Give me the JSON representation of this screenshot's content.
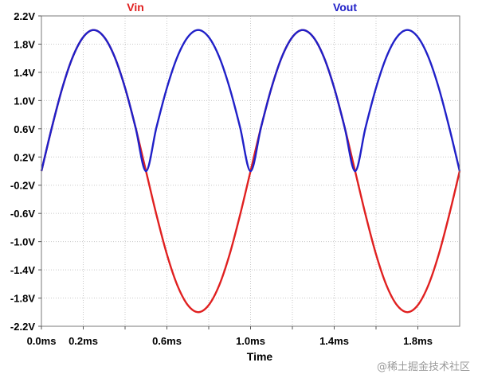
{
  "chart_data": {
    "type": "line",
    "xlabel": "Time",
    "ylabel": "",
    "xlim": [
      0,
      2
    ],
    "ylim": [
      -2.2,
      2.2
    ],
    "grid": true,
    "x_ticks": [
      {
        "value": 0.0,
        "label": "0.0ms"
      },
      {
        "value": 0.2,
        "label": "0.2ms"
      },
      {
        "value": 0.6,
        "label": "0.6ms"
      },
      {
        "value": 1.0,
        "label": "1.0ms"
      },
      {
        "value": 1.4,
        "label": "1.4ms"
      },
      {
        "value": 1.8,
        "label": "1.8ms"
      }
    ],
    "x_grid": [
      0.4,
      0.8,
      1.2,
      1.6
    ],
    "y_ticks": [
      {
        "value": 2.2,
        "label": "2.2V"
      },
      {
        "value": 1.8,
        "label": "1.8V"
      },
      {
        "value": 1.4,
        "label": "1.4V"
      },
      {
        "value": 1.0,
        "label": "1.0V"
      },
      {
        "value": 0.6,
        "label": "0.6V"
      },
      {
        "value": 0.2,
        "label": "0.2V"
      },
      {
        "value": -0.2,
        "label": "-0.2V"
      },
      {
        "value": -0.6,
        "label": "-0.6V"
      },
      {
        "value": -1.0,
        "label": "-1.0V"
      },
      {
        "value": -1.4,
        "label": "-1.4V"
      },
      {
        "value": -1.8,
        "label": "-1.8V"
      },
      {
        "value": -2.2,
        "label": "-2.2V"
      }
    ],
    "series": [
      {
        "name": "Vin",
        "color": "#e02020",
        "x": [
          0.0,
          0.05,
          0.1,
          0.15,
          0.2,
          0.25,
          0.3,
          0.35,
          0.4,
          0.45,
          0.5,
          0.55,
          0.6,
          0.65,
          0.7,
          0.75,
          0.8,
          0.85,
          0.9,
          0.95,
          1.0,
          1.05,
          1.1,
          1.15,
          1.2,
          1.25,
          1.3,
          1.35,
          1.4,
          1.45,
          1.5,
          1.55,
          1.6,
          1.65,
          1.7,
          1.75,
          1.8,
          1.85,
          1.9,
          1.95,
          2.0
        ],
        "values": [
          0.0,
          0.62,
          1.18,
          1.62,
          1.9,
          2.0,
          1.9,
          1.62,
          1.18,
          0.62,
          0.0,
          -0.62,
          -1.18,
          -1.62,
          -1.9,
          -2.0,
          -1.9,
          -1.62,
          -1.18,
          -0.62,
          0.0,
          0.62,
          1.18,
          1.62,
          1.9,
          2.0,
          1.9,
          1.62,
          1.18,
          0.62,
          0.0,
          -0.62,
          -1.18,
          -1.62,
          -1.9,
          -2.0,
          -1.9,
          -1.62,
          -1.18,
          -0.62,
          0.0
        ]
      },
      {
        "name": "Vout",
        "color": "#2020c8",
        "x": [
          0.0,
          0.05,
          0.1,
          0.15,
          0.2,
          0.25,
          0.3,
          0.35,
          0.4,
          0.45,
          0.5,
          0.55,
          0.6,
          0.65,
          0.7,
          0.75,
          0.8,
          0.85,
          0.9,
          0.95,
          1.0,
          1.05,
          1.1,
          1.15,
          1.2,
          1.25,
          1.3,
          1.35,
          1.4,
          1.45,
          1.5,
          1.55,
          1.6,
          1.65,
          1.7,
          1.75,
          1.8,
          1.85,
          1.9,
          1.95,
          2.0
        ],
        "values": [
          0.0,
          0.62,
          1.18,
          1.62,
          1.9,
          2.0,
          1.9,
          1.62,
          1.18,
          0.62,
          0.0,
          0.62,
          1.18,
          1.62,
          1.9,
          2.0,
          1.9,
          1.62,
          1.18,
          0.62,
          0.0,
          0.62,
          1.18,
          1.62,
          1.9,
          2.0,
          1.9,
          1.62,
          1.18,
          0.62,
          0.0,
          0.62,
          1.18,
          1.62,
          1.9,
          2.0,
          1.9,
          1.62,
          1.18,
          0.62,
          0.0
        ]
      }
    ]
  },
  "watermark": "@稀土掘金技术社区"
}
